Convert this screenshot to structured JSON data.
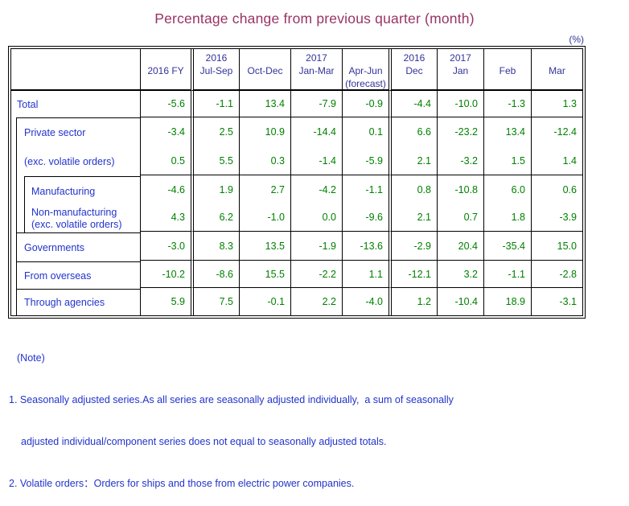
{
  "title": "Percentage change from previous quarter (month)",
  "unit_label": "(%)",
  "colors": {
    "title": "#993366",
    "header_text": "#333399",
    "row_label_text": "#2233cc",
    "value_text": "#008000",
    "border": "#000000",
    "background": "#ffffff"
  },
  "table": {
    "columns": [
      {
        "key": "fy-2016",
        "year": "",
        "period": "2016 FY",
        "note": ""
      },
      {
        "key": "jul-sep-2016",
        "year": "2016",
        "period": "Jul-Sep",
        "note": ""
      },
      {
        "key": "oct-dec-2016",
        "year": "",
        "period": "Oct-Dec",
        "note": ""
      },
      {
        "key": "jan-mar-2017",
        "year": "2017",
        "period": "Jan-Mar",
        "note": ""
      },
      {
        "key": "apr-jun-2017-forecast",
        "year": "",
        "period": "Apr-Jun",
        "note": "(forecast)"
      },
      {
        "key": "dec-2016",
        "year": "2016",
        "period": "Dec",
        "note": ""
      },
      {
        "key": "jan-2017",
        "year": "2017",
        "period": "Jan",
        "note": ""
      },
      {
        "key": "feb-2017",
        "year": "",
        "period": "Feb",
        "note": ""
      },
      {
        "key": "mar-2017",
        "year": "",
        "period": "Mar",
        "note": ""
      }
    ],
    "rows": [
      {
        "key": "total",
        "label": "Total",
        "label2": "",
        "values": [
          "-5.6",
          "-1.1",
          "13.4",
          "-7.9",
          "-0.9",
          "-4.4",
          "-10.0",
          "-1.3",
          "1.3"
        ]
      },
      {
        "key": "private-sector",
        "label": "Private sector",
        "label2": "",
        "values": [
          "-3.4",
          "2.5",
          "10.9",
          "-14.4",
          "0.1",
          "6.6",
          "-23.2",
          "13.4",
          "-12.4"
        ]
      },
      {
        "key": "private-exc-volatile",
        "label": "(exc. volatile orders)",
        "label2": "",
        "values": [
          "0.5",
          "5.5",
          "0.3",
          "-1.4",
          "-5.9",
          "2.1",
          "-3.2",
          "1.5",
          "1.4"
        ]
      },
      {
        "key": "manufacturing",
        "label": "Manufacturing",
        "label2": "",
        "values": [
          "-4.6",
          "1.9",
          "2.7",
          "-4.2",
          "-1.1",
          "0.8",
          "-10.8",
          "6.0",
          "0.6"
        ]
      },
      {
        "key": "non-manufacturing",
        "label": "Non-manufacturing",
        "label2": "(exc. volatile orders)",
        "values": [
          "4.3",
          "6.2",
          "-1.0",
          "0.0",
          "-9.6",
          "2.1",
          "0.7",
          "1.8",
          "-3.9"
        ]
      },
      {
        "key": "governments",
        "label": "Governments",
        "label2": "",
        "values": [
          "-3.0",
          "8.3",
          "13.5",
          "-1.9",
          "-13.6",
          "-2.9",
          "20.4",
          "-35.4",
          "15.0"
        ]
      },
      {
        "key": "from-overseas",
        "label": "From overseas",
        "label2": "",
        "values": [
          "-10.2",
          "-8.6",
          "15.5",
          "-2.2",
          "1.1",
          "-12.1",
          "3.2",
          "-1.1",
          "-2.8"
        ]
      },
      {
        "key": "through-agencies",
        "label": "Through agencies",
        "label2": "",
        "values": [
          "5.9",
          "7.5",
          "-0.1",
          "2.2",
          "-4.0",
          "1.2",
          "-10.4",
          "18.9",
          "-3.1"
        ]
      }
    ]
  },
  "notes": {
    "heading": "(Note)",
    "lines": [
      "1. Seasonally adjusted series.As all series are seasonally adjusted individually,  a sum of seasonally",
      "adjusted individual/component series does not equal to seasonally adjusted totals.",
      "2. Volatile orders：Orders for ships and those from electric power companies."
    ]
  },
  "chart_data": {
    "type": "table",
    "title": "Percentage change from previous quarter (month)",
    "unit": "%",
    "categories": [
      "2016 FY",
      "2016 Jul-Sep",
      "2016 Oct-Dec",
      "2017 Jan-Mar",
      "2017 Apr-Jun (forecast)",
      "2016 Dec",
      "2017 Jan",
      "2017 Feb",
      "2017 Mar"
    ],
    "series": [
      {
        "name": "Total",
        "values": [
          -5.6,
          -1.1,
          13.4,
          -7.9,
          -0.9,
          -4.4,
          -10.0,
          -1.3,
          1.3
        ]
      },
      {
        "name": "Private sector",
        "values": [
          -3.4,
          2.5,
          10.9,
          -14.4,
          0.1,
          6.6,
          -23.2,
          13.4,
          -12.4
        ]
      },
      {
        "name": "Private sector (exc. volatile orders)",
        "values": [
          0.5,
          5.5,
          0.3,
          -1.4,
          -5.9,
          2.1,
          -3.2,
          1.5,
          1.4
        ]
      },
      {
        "name": "Manufacturing",
        "values": [
          -4.6,
          1.9,
          2.7,
          -4.2,
          -1.1,
          0.8,
          -10.8,
          6.0,
          0.6
        ]
      },
      {
        "name": "Non-manufacturing (exc. volatile orders)",
        "values": [
          4.3,
          6.2,
          -1.0,
          0.0,
          -9.6,
          2.1,
          0.7,
          1.8,
          -3.9
        ]
      },
      {
        "name": "Governments",
        "values": [
          -3.0,
          8.3,
          13.5,
          -1.9,
          -13.6,
          -2.9,
          20.4,
          -35.4,
          15.0
        ]
      },
      {
        "name": "From overseas",
        "values": [
          -10.2,
          -8.6,
          15.5,
          -2.2,
          1.1,
          -12.1,
          3.2,
          -1.1,
          -2.8
        ]
      },
      {
        "name": "Through agencies",
        "values": [
          5.9,
          7.5,
          -0.1,
          2.2,
          -4.0,
          1.2,
          -10.4,
          18.9,
          -3.1
        ]
      }
    ]
  }
}
